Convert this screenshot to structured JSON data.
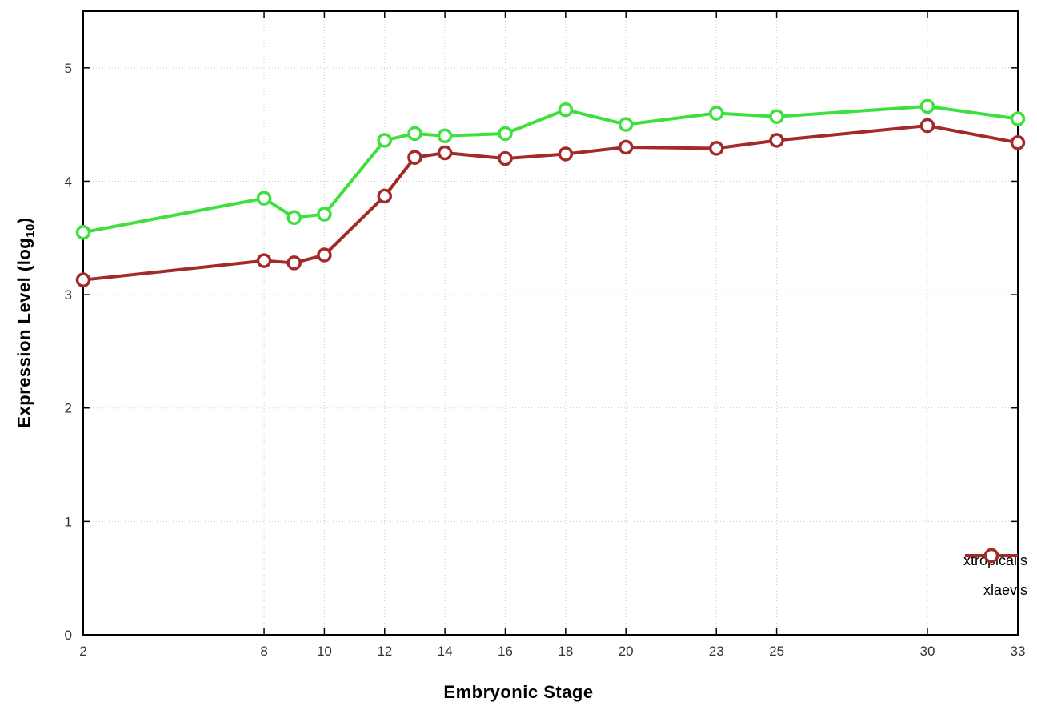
{
  "chart_data": {
    "type": "line",
    "title": "",
    "xlabel": "Embryonic Stage",
    "ylabel_prefix": "Expression Level (log",
    "ylabel_sub": "10",
    "ylabel_suffix": ")",
    "x": [
      2,
      8,
      9,
      10,
      12,
      13,
      14,
      16,
      18,
      20,
      23,
      25,
      30,
      33
    ],
    "series": [
      {
        "name": "xtropicalis",
        "color": "#3ee03e",
        "values": [
          3.55,
          3.85,
          3.68,
          3.71,
          4.36,
          4.42,
          4.4,
          4.42,
          4.63,
          4.5,
          4.6,
          4.57,
          4.66,
          4.55
        ]
      },
      {
        "name": "xlaevis",
        "color": "#a42a2a",
        "values": [
          3.13,
          3.3,
          3.28,
          3.35,
          3.87,
          4.21,
          4.25,
          4.2,
          4.24,
          4.3,
          4.29,
          4.36,
          4.49,
          4.34
        ]
      }
    ],
    "xticks": [
      2,
      8,
      10,
      12,
      14,
      16,
      18,
      20,
      23,
      25,
      30,
      33
    ],
    "yticks": [
      0,
      1,
      2,
      3,
      4,
      5
    ],
    "xlim": [
      2,
      33
    ],
    "ylim": [
      0,
      5.5
    ],
    "grid": true,
    "legend_position": "bottom-right",
    "styles": {
      "grid_color": "#c8c8c8",
      "border_color": "#000000",
      "tick_label_color": "#333333",
      "background": "#ffffff",
      "marker_fill": "#ffffff"
    }
  }
}
